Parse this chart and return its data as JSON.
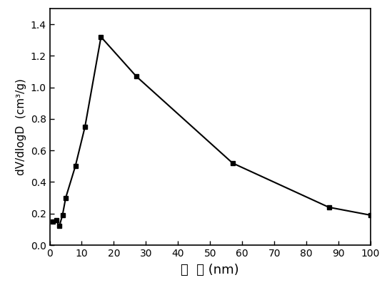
{
  "x": [
    1,
    2,
    3,
    4,
    5,
    8,
    11,
    16,
    27,
    57,
    87,
    100
  ],
  "y": [
    0.15,
    0.16,
    0.12,
    0.19,
    0.3,
    0.5,
    0.75,
    1.32,
    1.07,
    0.52,
    0.24,
    0.19
  ],
  "xlim": [
    0,
    100
  ],
  "ylim": [
    0.0,
    1.5
  ],
  "yticks": [
    0.0,
    0.2,
    0.4,
    0.6,
    0.8,
    1.0,
    1.2,
    1.4
  ],
  "xticks": [
    0,
    10,
    20,
    30,
    40,
    50,
    60,
    70,
    80,
    90,
    100
  ],
  "xlabel": "孔  径 (nm)",
  "ylabel": "dV/dlogD  (cm³/g)",
  "line_color": "#000000",
  "marker": "s",
  "marker_size": 5,
  "line_width": 1.5,
  "background_color": "#ffffff",
  "tick_fontsize": 10,
  "label_fontsize": 13,
  "ylabel_fontsize": 11
}
